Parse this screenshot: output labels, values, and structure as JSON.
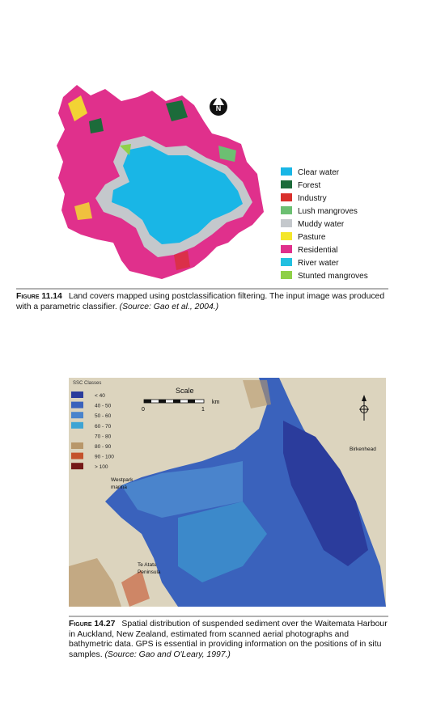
{
  "figure1": {
    "north_label": "N",
    "legend": [
      {
        "label": "Clear water",
        "color": "#19b6e6"
      },
      {
        "label": "Forest",
        "color": "#1c6b3a"
      },
      {
        "label": "Industry",
        "color": "#d9302c"
      },
      {
        "label": "Lush mangroves",
        "color": "#6cbf72"
      },
      {
        "label": "Muddy water",
        "color": "#c4c8cc"
      },
      {
        "label": "Pasture",
        "color": "#f4e62a"
      },
      {
        "label": "Residential",
        "color": "#e0308c"
      },
      {
        "label": "River water",
        "color": "#22c0e0"
      },
      {
        "label": "Stunted mangroves",
        "color": "#8fd048"
      }
    ],
    "caption": {
      "label": "Figure 11.14",
      "text": "Land covers mapped using postclassification filtering. The input image was produced with a parametric classifier.",
      "source": "(Source: Gao et al., 2004.)"
    }
  },
  "figure2": {
    "legend_title": "SSC Classes",
    "legend": [
      {
        "label": "< 40",
        "color": "#2b3c9c"
      },
      {
        "label": "40 - 50",
        "color": "#3a62bc"
      },
      {
        "label": "50 - 60",
        "color": "#4a84cc"
      },
      {
        "label": "60 - 70",
        "color": "#3ea4d4"
      },
      {
        "label": "70 - 80",
        "color": "#dcd4be"
      },
      {
        "label": "80 - 90",
        "color": "#b8976a"
      },
      {
        "label": "90 - 100",
        "color": "#c4522c"
      },
      {
        "label": "> 100",
        "color": "#741818"
      }
    ],
    "scale_title": "Scale",
    "scale_ticks": [
      "0",
      "1"
    ],
    "scale_unit": "km",
    "places": [
      {
        "lines": [
          "Birkenhead"
        ]
      },
      {
        "lines": [
          "Westpark",
          "marina"
        ]
      },
      {
        "lines": [
          "Te Atatu",
          "Peninsula"
        ]
      }
    ],
    "caption": {
      "label": "Figure 14.27",
      "text": "Spatial distribution of suspended sediment over the Waitemata Harbour in Auckland, New Zealand, estimated from scanned aerial photographs and bathymetric data. GPS is essential in providing information on the positions of in situ samples.",
      "source": "(Source: Gao and O'Leary, 1997.)"
    }
  }
}
